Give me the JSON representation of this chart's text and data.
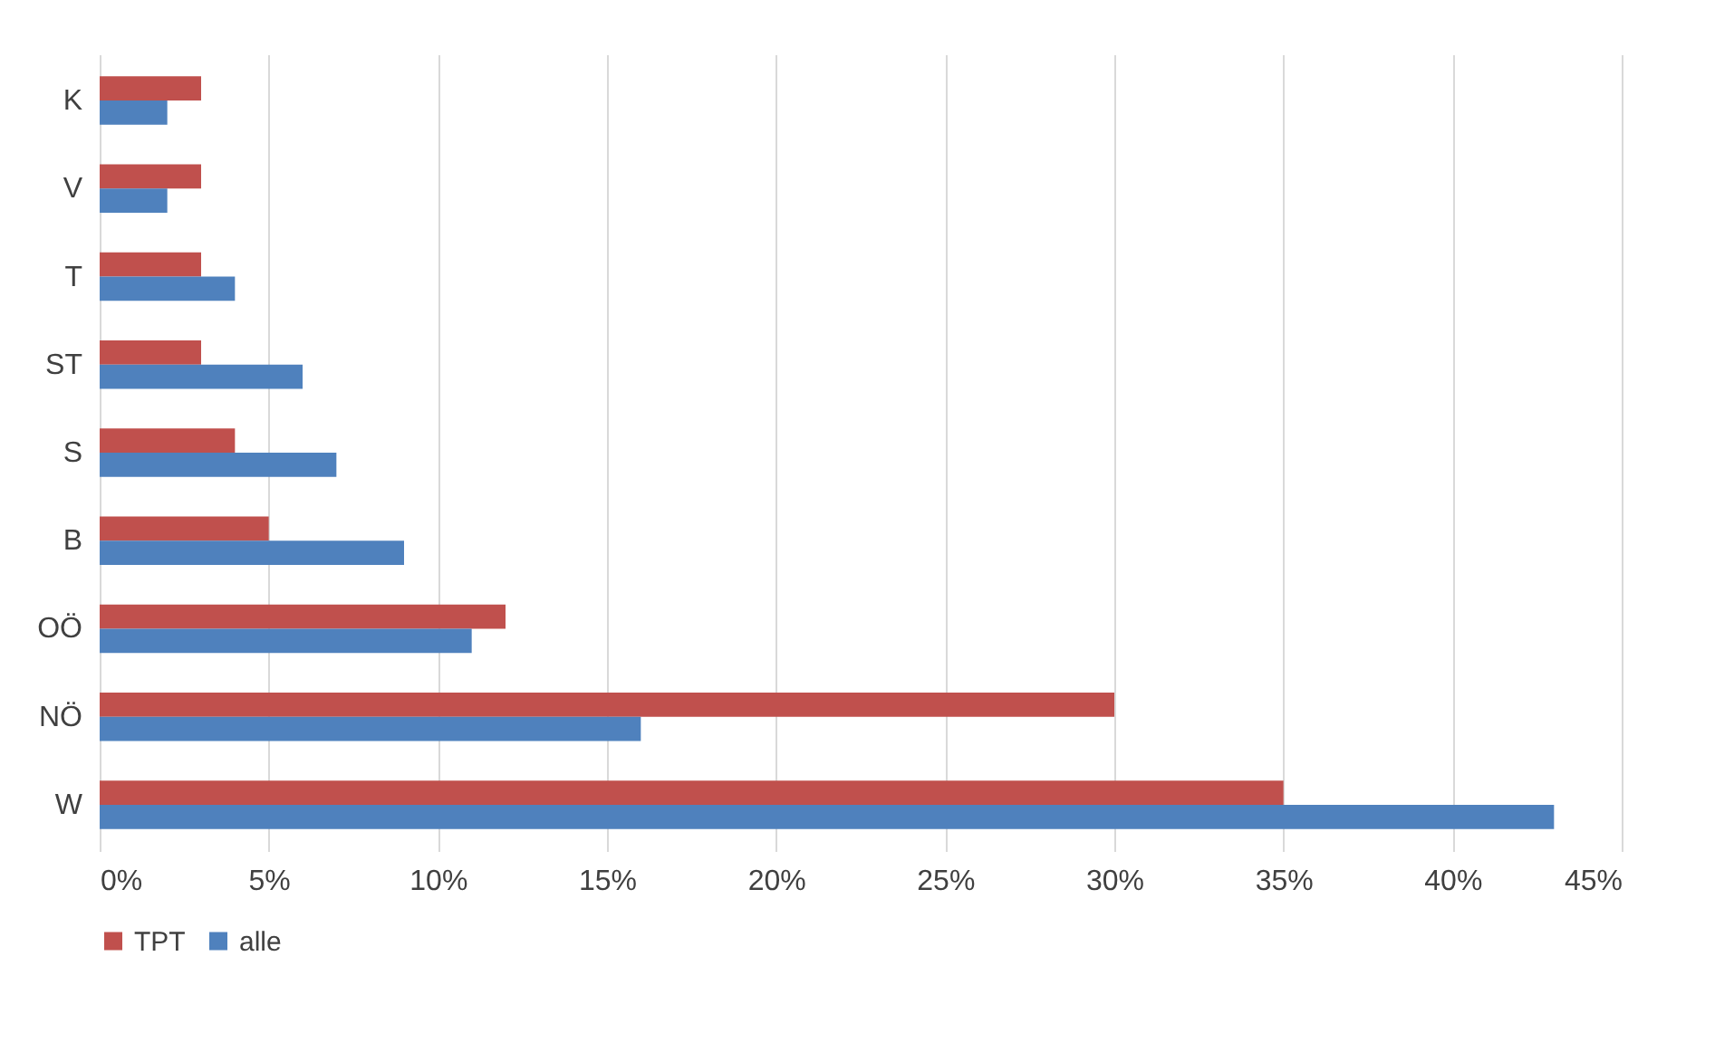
{
  "chart_data": {
    "type": "bar",
    "orientation": "horizontal",
    "categories": [
      "K",
      "V",
      "T",
      "ST",
      "S",
      "B",
      "OÖ",
      "NÖ",
      "W"
    ],
    "series": [
      {
        "name": "TPT",
        "color": "#c0504d",
        "values": [
          3,
          3,
          3,
          3,
          4,
          5,
          12,
          30,
          35
        ]
      },
      {
        "name": "alle",
        "color": "#4f81bd",
        "values": [
          2,
          2,
          4,
          6,
          7,
          9,
          11,
          16,
          43
        ]
      }
    ],
    "xlim": [
      0,
      45
    ],
    "xticks": [
      {
        "value": 0,
        "label": "0%"
      },
      {
        "value": 5,
        "label": "5%"
      },
      {
        "value": 10,
        "label": "10%"
      },
      {
        "value": 15,
        "label": "15%"
      },
      {
        "value": 20,
        "label": "20%"
      },
      {
        "value": 25,
        "label": "25%"
      },
      {
        "value": 30,
        "label": "30%"
      },
      {
        "value": 35,
        "label": "35%"
      },
      {
        "value": 40,
        "label": "40%"
      },
      {
        "value": 45,
        "label": "45%"
      }
    ],
    "grid": "x",
    "legend": "bottom"
  }
}
